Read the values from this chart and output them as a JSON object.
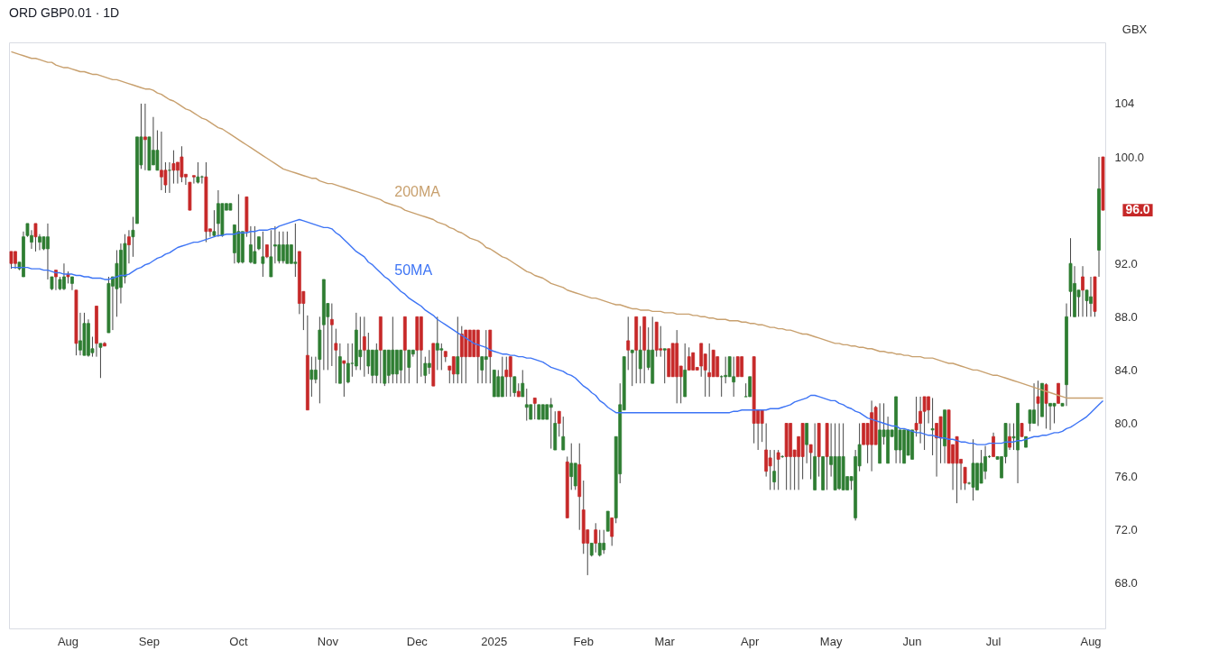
{
  "chart_data": {
    "type": "candlestick",
    "title": "ORD GBP0.01 · 1D",
    "ylabel": "GBX",
    "ylim": [
      64.6,
      108.6
    ],
    "yticks": [
      {
        "value": 68,
        "label": "68.0"
      },
      {
        "value": 72,
        "label": "72.0"
      },
      {
        "value": 76,
        "label": "76.0"
      },
      {
        "value": 80,
        "label": "80.0"
      },
      {
        "value": 84,
        "label": "84.0"
      },
      {
        "value": 88,
        "label": "88.0"
      },
      {
        "value": 92,
        "label": "92.0"
      },
      {
        "value": 100,
        "label": "100.0"
      },
      104
    ],
    "categories": [
      null,
      null,
      null,
      null,
      null,
      null,
      null,
      null,
      null,
      null,
      null,
      null,
      null,
      null,
      "Aug",
      null,
      null,
      null,
      null,
      null,
      null,
      null,
      null,
      null,
      null,
      null,
      null,
      null,
      null,
      null,
      null,
      null,
      null,
      null,
      "Sep",
      null,
      null,
      null,
      null,
      null,
      null,
      null,
      null,
      null,
      null,
      null,
      null,
      null,
      null,
      null,
      null,
      null,
      null,
      null,
      null,
      null,
      "Oct",
      null,
      null,
      null,
      null,
      null,
      null,
      null,
      null,
      null,
      null,
      null,
      null,
      null,
      null,
      null,
      null,
      null,
      null,
      null,
      null,
      null,
      "Nov",
      null,
      null,
      null,
      null,
      null,
      null,
      null,
      null,
      null,
      null,
      null,
      null,
      null,
      null,
      null,
      null,
      null,
      null,
      null,
      null,
      null,
      "Dec",
      null,
      null,
      null,
      null,
      null,
      null,
      null,
      null,
      null,
      null,
      null,
      null,
      null,
      null,
      null,
      null,
      null,
      null,
      "2025",
      null,
      null,
      null,
      null,
      null,
      null,
      null,
      null,
      null,
      null,
      null,
      null,
      null,
      null,
      null,
      null,
      null,
      null,
      null,
      null,
      null,
      "Feb",
      null,
      null,
      null,
      null,
      null,
      null,
      null,
      null,
      null,
      null,
      null,
      null,
      null,
      null,
      null,
      null,
      null,
      null,
      null,
      "Mar",
      null,
      null,
      null,
      null,
      null,
      null,
      null,
      null,
      null,
      null,
      null,
      null,
      null,
      null,
      null,
      null,
      null,
      null,
      null,
      null,
      "Apr",
      null,
      null,
      null,
      null,
      null,
      null,
      null,
      null,
      null,
      null,
      null,
      null,
      null,
      null,
      null,
      null,
      null,
      null,
      null,
      "May",
      null,
      null,
      null,
      null,
      null,
      null,
      null,
      null,
      null,
      null,
      null,
      null,
      null,
      null,
      null,
      null,
      null,
      null,
      null,
      "Jun",
      null,
      null,
      null,
      null,
      null,
      null,
      null,
      null,
      null,
      null,
      null,
      null,
      null,
      null,
      null,
      null,
      null,
      null,
      null,
      "Jul",
      null,
      null,
      null,
      null,
      null,
      null,
      null,
      null,
      null,
      null,
      null,
      null,
      null,
      null,
      null,
      null,
      null,
      null,
      null,
      null,
      null,
      null,
      null,
      "Aug",
      null,
      null,
      null
    ],
    "ohlc": [
      [
        92.9,
        92.9,
        91.6,
        92.0
      ],
      [
        92.9,
        92.9,
        91.6,
        92.0
      ],
      [
        91.6,
        92.1,
        91.5,
        92.1
      ],
      [
        91.0,
        94.4,
        91.0,
        94.0
      ],
      [
        94.1,
        95.0,
        94.0,
        95.0
      ],
      [
        93.6,
        94.5,
        93.1,
        94.1
      ],
      [
        95.0,
        95.0,
        92.9,
        94.0
      ],
      [
        93.6,
        94.2,
        93.0,
        94.0
      ],
      [
        93.1,
        94.0,
        93.0,
        94.0
      ],
      [
        93.1,
        95.0,
        90.8,
        94.0
      ],
      [
        90.1,
        91.0,
        90.0,
        91.0
      ],
      [
        91.5,
        91.5,
        90.0,
        91.0
      ],
      [
        90.1,
        91.0,
        90.0,
        90.8
      ],
      [
        90.1,
        92.0,
        90.0,
        91.0
      ],
      [
        91.2,
        91.4,
        90.5,
        91.0
      ],
      [
        90.5,
        91.0,
        90.0,
        91.0
      ],
      [
        90.0,
        90.0,
        85.1,
        86.0
      ],
      [
        85.5,
        88.3,
        85.1,
        86.2
      ],
      [
        85.1,
        88.3,
        85.1,
        87.5
      ],
      [
        85.1,
        87.8,
        85.0,
        87.5
      ],
      [
        85.3,
        86.5,
        85.0,
        85.6
      ],
      [
        88.8,
        88.8,
        85.0,
        86.0
      ],
      [
        85.7,
        86.0,
        83.4,
        86.0
      ],
      [
        86.0,
        86.1,
        85.8,
        85.8
      ],
      [
        86.8,
        91.0,
        86.8,
        90.5
      ],
      [
        90.3,
        91.0,
        87.0,
        91.0
      ],
      [
        90.1,
        93.0,
        88.0,
        92.0
      ],
      [
        90.2,
        93.5,
        89.0,
        93.0
      ],
      [
        91.0,
        94.2,
        90.5,
        93.5
      ],
      [
        94.0,
        94.5,
        92.0,
        93.4
      ],
      [
        94.0,
        95.5,
        92.5,
        94.5
      ],
      [
        95.0,
        101.5,
        95.0,
        101.5
      ],
      [
        99.4,
        104.0,
        99.1,
        101.5
      ],
      [
        101.5,
        104.0,
        99.0,
        101.3
      ],
      [
        99.0,
        101.5,
        99.0,
        101.5
      ],
      [
        99.4,
        103.0,
        99.4,
        100.5
      ],
      [
        99.0,
        102.0,
        99.0,
        100.5
      ],
      [
        99.0,
        101.9,
        97.5,
        98.5
      ],
      [
        99.0,
        99.6,
        97.3,
        97.9
      ],
      [
        99.0,
        99.6,
        97.3,
        99.0
      ],
      [
        99.5,
        100.5,
        98.0,
        99.0
      ],
      [
        99.6,
        99.6,
        98.0,
        99.0
      ],
      [
        100.0,
        100.8,
        98.1,
        98.5
      ],
      [
        98.7,
        98.7,
        97.9,
        98.5
      ],
      [
        98.1,
        98.1,
        96.0,
        96.0
      ],
      [
        98.6,
        98.6,
        98.0,
        98.5
      ],
      [
        98.1,
        99.6,
        98.0,
        98.5
      ],
      [
        98.5,
        98.6,
        98.0,
        98.5
      ],
      [
        98.5,
        99.6,
        93.6,
        94.4
      ],
      [
        94.6,
        94.6,
        94.0,
        94.4
      ],
      [
        94.1,
        96.0,
        94.0,
        94.4
      ],
      [
        95.0,
        97.5,
        94.0,
        96.5
      ],
      [
        94.1,
        96.5,
        94.0,
        96.5
      ],
      [
        96.0,
        96.5,
        96.0,
        96.5
      ],
      [
        96.0,
        96.5,
        96.0,
        96.5
      ],
      [
        92.8,
        94.9,
        92.0,
        94.9
      ],
      [
        92.1,
        97.2,
        92.0,
        94.4
      ],
      [
        92.1,
        94.4,
        92.0,
        94.4
      ],
      [
        97.0,
        97.0,
        94.0,
        94.4
      ],
      [
        92.1,
        94.8,
        92.0,
        93.4
      ],
      [
        92.0,
        94.8,
        92.0,
        92.9
      ],
      [
        93.1,
        94.0,
        93.0,
        94.0
      ],
      [
        92.0,
        94.4,
        91.0,
        92.5
      ],
      [
        93.4,
        93.4,
        92.4,
        92.5
      ],
      [
        91.0,
        94.5,
        91.0,
        92.5
      ],
      [
        93.3,
        94.8,
        92.0,
        93.4
      ],
      [
        92.2,
        94.4,
        92.0,
        93.4
      ],
      [
        92.2,
        94.4,
        92.0,
        93.4
      ],
      [
        92.0,
        94.4,
        92.0,
        93.4
      ],
      [
        92.0,
        93.4,
        92.0,
        93.4
      ],
      [
        92.0,
        95.0,
        91.0,
        92.1
      ],
      [
        92.9,
        92.9,
        88.2,
        89.0
      ],
      [
        89.9,
        89.9,
        87.0,
        89.0
      ],
      [
        85.1,
        88.1,
        81.0,
        81.0
      ],
      [
        83.3,
        85.0,
        82.0,
        84.0
      ],
      [
        83.3,
        85.0,
        83.0,
        84.0
      ],
      [
        84.8,
        88.0,
        81.5,
        87.0
      ],
      [
        87.4,
        90.8,
        84.0,
        90.8
      ],
      [
        88.0,
        89.0,
        84.0,
        89.0
      ],
      [
        87.8,
        89.0,
        84.3,
        87.4
      ],
      [
        86.0,
        87.1,
        83.0,
        85.5
      ],
      [
        83.0,
        86.0,
        83.0,
        85.0
      ],
      [
        84.7,
        84.7,
        82.0,
        84.5
      ],
      [
        83.1,
        86.0,
        83.0,
        84.5
      ],
      [
        84.5,
        86.0,
        83.5,
        84.5
      ],
      [
        84.3,
        88.3,
        84.0,
        87.0
      ],
      [
        85.0,
        88.0,
        84.0,
        85.5
      ],
      [
        86.5,
        88.0,
        83.5,
        85.5
      ],
      [
        84.3,
        86.8,
        83.7,
        85.5
      ],
      [
        83.6,
        85.5,
        83.0,
        85.5
      ],
      [
        83.6,
        86.0,
        83.0,
        85.5
      ],
      [
        88.0,
        88.0,
        83.0,
        85.5
      ],
      [
        83.0,
        85.5,
        82.8,
        85.5
      ],
      [
        83.6,
        85.5,
        83.0,
        85.5
      ],
      [
        83.7,
        88.0,
        83.0,
        85.5
      ],
      [
        83.7,
        85.5,
        83.0,
        85.5
      ],
      [
        84.0,
        85.5,
        83.0,
        85.5
      ],
      [
        88.0,
        88.0,
        83.0,
        85.5
      ],
      [
        84.2,
        85.5,
        83.0,
        85.5
      ],
      [
        85.2,
        85.5,
        85.0,
        85.5
      ],
      [
        88.0,
        88.0,
        83.0,
        85.5
      ],
      [
        88.0,
        88.0,
        83.5,
        85.5
      ],
      [
        83.6,
        85.0,
        83.0,
        84.5
      ],
      [
        84.2,
        85.5,
        83.7,
        84.5
      ],
      [
        86.0,
        86.0,
        82.8,
        82.8
      ],
      [
        85.5,
        88.0,
        84.0,
        86.0
      ],
      [
        85.5,
        86.0,
        84.0,
        85.6
      ],
      [
        85.4,
        85.4,
        84.6,
        85.0
      ],
      [
        84.3,
        84.3,
        83.0,
        84.0
      ],
      [
        85.0,
        85.0,
        83.0,
        83.7
      ],
      [
        83.7,
        88.0,
        83.0,
        85.0
      ],
      [
        86.7,
        87.3,
        83.0,
        85.0
      ],
      [
        87.0,
        87.0,
        83.0,
        85.0
      ],
      [
        87.0,
        87.0,
        85.0,
        85.0
      ],
      [
        87.0,
        87.0,
        85.0,
        85.0
      ],
      [
        87.0,
        87.0,
        83.0,
        85.0
      ],
      [
        84.0,
        85.0,
        83.0,
        85.0
      ],
      [
        84.8,
        87.0,
        83.0,
        85.0
      ],
      [
        87.0,
        87.0,
        83.0,
        85.0
      ],
      [
        82.0,
        84.0,
        82.0,
        84.0
      ],
      [
        82.0,
        84.0,
        82.0,
        83.5
      ],
      [
        82.0,
        85.0,
        82.0,
        83.5
      ],
      [
        84.0,
        85.0,
        82.0,
        83.5
      ],
      [
        85.0,
        85.0,
        82.0,
        83.5
      ],
      [
        82.3,
        83.5,
        82.0,
        83.5
      ],
      [
        82.4,
        83.0,
        82.0,
        82.0
      ],
      [
        82.0,
        84.0,
        82.0,
        83.0
      ],
      [
        81.2,
        82.6,
        80.2,
        81.4
      ],
      [
        80.3,
        81.4,
        80.3,
        81.4
      ],
      [
        81.9,
        81.9,
        80.3,
        81.5
      ],
      [
        80.3,
        81.4,
        80.3,
        81.4
      ],
      [
        80.3,
        81.4,
        80.3,
        81.4
      ],
      [
        80.3,
        81.4,
        80.3,
        81.4
      ],
      [
        81.2,
        81.9,
        78.1,
        81.4
      ],
      [
        78.0,
        80.9,
        78.0,
        80.0
      ],
      [
        80.9,
        80.9,
        79.0,
        80.0
      ],
      [
        78.0,
        80.5,
        78.0,
        79.0
      ],
      [
        77.1,
        77.5,
        72.9,
        72.9
      ],
      [
        76.0,
        78.5,
        75.0,
        77.0
      ],
      [
        75.3,
        77.0,
        75.0,
        77.0
      ],
      [
        76.9,
        78.5,
        72.0,
        74.5
      ],
      [
        73.5,
        75.7,
        70.2,
        71.0
      ],
      [
        72.0,
        72.0,
        68.6,
        71.0
      ],
      [
        70.1,
        71.0,
        70.0,
        71.0
      ],
      [
        72.0,
        72.5,
        70.3,
        71.0
      ],
      [
        70.1,
        72.0,
        70.0,
        71.0
      ],
      [
        70.5,
        72.0,
        70.2,
        71.0
      ],
      [
        71.9,
        73.4,
        71.9,
        73.4
      ],
      [
        72.9,
        72.9,
        70.8,
        71.5
      ],
      [
        72.9,
        79.0,
        72.5,
        79.0
      ],
      [
        76.2,
        83.0,
        75.5,
        81.4
      ],
      [
        81.0,
        85.0,
        81.0,
        85.0
      ],
      [
        86.2,
        88.0,
        84.0,
        85.5
      ],
      [
        85.3,
        85.5,
        82.8,
        85.5
      ],
      [
        88.0,
        88.0,
        83.0,
        85.5
      ],
      [
        84.1,
        87.3,
        83.0,
        85.5
      ],
      [
        88.0,
        88.0,
        83.0,
        85.5
      ],
      [
        84.2,
        87.2,
        84.0,
        85.5
      ],
      [
        83.0,
        88.0,
        83.0,
        85.5
      ],
      [
        87.6,
        87.6,
        85.0,
        85.5
      ],
      [
        85.6,
        87.3,
        85.0,
        85.5
      ],
      [
        85.5,
        85.6,
        83.0,
        85.6
      ],
      [
        85.6,
        85.6,
        83.5,
        83.5
      ],
      [
        86.0,
        86.0,
        83.5,
        83.5
      ],
      [
        86.0,
        87.0,
        81.5,
        83.5
      ],
      [
        84.3,
        84.3,
        81.5,
        83.5
      ],
      [
        82.0,
        86.0,
        82.0,
        84.0
      ],
      [
        85.0,
        85.7,
        84.0,
        84.0
      ],
      [
        85.3,
        85.3,
        84.0,
        84.0
      ],
      [
        84.2,
        84.2,
        84.0,
        84.0
      ],
      [
        86.0,
        86.0,
        83.5,
        84.3
      ],
      [
        85.2,
        85.2,
        82.0,
        84.0
      ],
      [
        83.8,
        86.0,
        82.0,
        83.5
      ],
      [
        85.5,
        85.5,
        83.5,
        83.5
      ],
      [
        85.0,
        85.0,
        83.5,
        83.5
      ],
      [
        83.5,
        83.6,
        82.0,
        83.5
      ],
      [
        83.5,
        85.0,
        83.0,
        83.6
      ],
      [
        83.5,
        85.0,
        83.5,
        85.0
      ],
      [
        83.1,
        85.0,
        82.0,
        83.5
      ],
      [
        85.0,
        85.0,
        83.5,
        83.5
      ],
      [
        85.0,
        85.0,
        83.5,
        83.5
      ],
      [
        82.0,
        83.0,
        82.0,
        82.0
      ],
      [
        82.0,
        83.5,
        82.0,
        83.5
      ],
      [
        85.0,
        85.0,
        78.5,
        80.0
      ],
      [
        81.0,
        81.0,
        78.0,
        80.0
      ],
      [
        81.0,
        81.0,
        78.6,
        80.0
      ],
      [
        78.0,
        80.0,
        76.0,
        76.4
      ],
      [
        77.4,
        78.0,
        75.0,
        76.8
      ],
      [
        75.6,
        78.0,
        75.0,
        76.4
      ],
      [
        77.8,
        78.0,
        75.0,
        77.3
      ],
      [
        77.5,
        77.6,
        77.4,
        77.5
      ],
      [
        80.0,
        80.0,
        75.0,
        77.5
      ],
      [
        80.0,
        80.0,
        75.0,
        77.5
      ],
      [
        78.0,
        78.0,
        75.0,
        77.5
      ],
      [
        79.0,
        79.0,
        75.0,
        77.5
      ],
      [
        80.0,
        80.0,
        75.8,
        77.5
      ],
      [
        78.4,
        80.0,
        77.0,
        80.0
      ],
      [
        78.4,
        78.4,
        75.8,
        77.8
      ],
      [
        75.0,
        80.0,
        75.0,
        77.5
      ],
      [
        80.0,
        80.0,
        76.0,
        77.5
      ],
      [
        75.0,
        77.5,
        75.0,
        77.5
      ],
      [
        80.0,
        80.0,
        75.0,
        77.5
      ],
      [
        76.9,
        80.0,
        76.0,
        77.5
      ],
      [
        75.0,
        80.0,
        75.0,
        77.5
      ],
      [
        75.1,
        80.0,
        75.0,
        77.5
      ],
      [
        75.0,
        80.0,
        75.0,
        77.5
      ],
      [
        75.0,
        76.0,
        75.0,
        76.0
      ],
      [
        75.7,
        76.0,
        75.0,
        76.0
      ],
      [
        72.9,
        78.0,
        72.7,
        77.5
      ],
      [
        76.8,
        80.0,
        76.4,
        78.4
      ],
      [
        80.0,
        80.0,
        78.4,
        78.4
      ],
      [
        80.0,
        80.0,
        77.0,
        78.4
      ],
      [
        80.8,
        81.7,
        76.4,
        78.4
      ],
      [
        81.2,
        81.3,
        78.4,
        78.4
      ],
      [
        77.0,
        81.5,
        77.0,
        79.5
      ],
      [
        79.0,
        81.5,
        78.4,
        79.5
      ],
      [
        77.0,
        80.5,
        77.0,
        79.5
      ],
      [
        79.0,
        79.5,
        79.0,
        79.5
      ],
      [
        78.0,
        82.0,
        77.0,
        82.0
      ],
      [
        78.0,
        79.5,
        77.0,
        79.5
      ],
      [
        77.0,
        79.5,
        77.0,
        79.5
      ],
      [
        77.6,
        79.5,
        77.6,
        79.5
      ],
      [
        77.3,
        79.5,
        77.3,
        79.5
      ],
      [
        80.0,
        82.0,
        79.0,
        79.5
      ],
      [
        80.9,
        82.0,
        78.5,
        80.0
      ],
      [
        82.0,
        82.0,
        78.0,
        80.9
      ],
      [
        82.0,
        82.0,
        80.0,
        81.0
      ],
      [
        79.5,
        81.9,
        77.6,
        79.6
      ],
      [
        80.0,
        80.0,
        76.0,
        78.9
      ],
      [
        80.5,
        80.5,
        77.0,
        78.9
      ],
      [
        78.3,
        81.0,
        77.0,
        81.0
      ],
      [
        81.0,
        81.0,
        77.0,
        77.0
      ],
      [
        78.4,
        78.4,
        75.0,
        77.0
      ],
      [
        79.0,
        79.0,
        74.0,
        77.0
      ],
      [
        77.3,
        77.3,
        75.0,
        77.0
      ],
      [
        76.7,
        76.7,
        75.0,
        75.5
      ],
      [
        75.5,
        75.6,
        75.4,
        75.5
      ],
      [
        75.2,
        78.8,
        74.2,
        77.0
      ],
      [
        75.0,
        77.0,
        75.0,
        77.0
      ],
      [
        75.5,
        78.0,
        75.5,
        77.0
      ],
      [
        76.4,
        78.3,
        75.8,
        77.5
      ],
      [
        77.5,
        77.6,
        77.4,
        77.5
      ],
      [
        79.0,
        79.3,
        77.5,
        77.5
      ],
      [
        77.3,
        77.5,
        77.3,
        77.5
      ],
      [
        75.9,
        77.5,
        75.9,
        77.5
      ],
      [
        77.5,
        80.0,
        77.0,
        80.0
      ],
      [
        79.0,
        80.0,
        78.0,
        78.2
      ],
      [
        78.9,
        80.0,
        78.0,
        79.0
      ],
      [
        78.0,
        81.5,
        75.5,
        81.5
      ],
      [
        80.0,
        80.0,
        79.0,
        79.0
      ],
      [
        78.2,
        79.0,
        78.2,
        79.0
      ],
      [
        80.0,
        81.0,
        79.4,
        81.0
      ],
      [
        80.0,
        83.0,
        80.0,
        81.0
      ],
      [
        82.0,
        83.2,
        79.8,
        81.5
      ],
      [
        80.5,
        83.0,
        80.5,
        83.0
      ],
      [
        82.9,
        83.0,
        79.6,
        81.5
      ],
      [
        81.3,
        81.5,
        79.5,
        81.5
      ],
      [
        81.3,
        81.5,
        80.0,
        81.5
      ],
      [
        83.0,
        83.0,
        81.5,
        81.5
      ],
      [
        81.3,
        81.5,
        81.3,
        81.5
      ],
      [
        82.9,
        89.0,
        81.3,
        88.0
      ],
      [
        89.9,
        93.9,
        88.0,
        92.0
      ],
      [
        88.0,
        91.8,
        88.0,
        90.5
      ],
      [
        89.5,
        90.0,
        88.0,
        90.0
      ],
      [
        91.0,
        91.8,
        88.0,
        90.0
      ],
      [
        89.2,
        90.0,
        88.0,
        90.0
      ],
      [
        89.0,
        91.0,
        88.0,
        89.5
      ],
      [
        91.0,
        91.0,
        88.0,
        88.4
      ],
      [
        93.0,
        100.0,
        91.0,
        97.6
      ],
      [
        100.0,
        100.0,
        96.0,
        96.0
      ]
    ],
    "colors": [
      "#c62828",
      "#c62828",
      "#2e7d32",
      "#2e7d32",
      "#2e7d32",
      "#2e7d32",
      "#c62828",
      "#2e7d32",
      "#2e7d32",
      "#2e7d32",
      "#2e7d32",
      "#c62828",
      "#2e7d32",
      "#2e7d32",
      "#c62828",
      "#2e7d32",
      "#c62828",
      "#2e7d32",
      "#2e7d32",
      "#2e7d32",
      "#2e7d32",
      "#c62828",
      "#2e7d32",
      "#c62828",
      "#2e7d32",
      "#2e7d32",
      "#2e7d32",
      "#2e7d32",
      "#2e7d32",
      "#c62828",
      "#2e7d32",
      "#2e7d32",
      "#2e7d32",
      "#c62828",
      "#2e7d32",
      "#2e7d32",
      "#2e7d32",
      "#c62828",
      "#c62828",
      "#2e7d32",
      "#c62828",
      "#c62828",
      "#c62828",
      "#c62828",
      "#c62828",
      "#c62828",
      "#2e7d32",
      "#2e7d32",
      "#c62828",
      "#c62828",
      "#2e7d32",
      "#2e7d32",
      "#2e7d32",
      "#2e7d32",
      "#2e7d32",
      "#2e7d32",
      "#2e7d32",
      "#2e7d32",
      "#c62828",
      "#2e7d32",
      "#2e7d32",
      "#2e7d32",
      "#2e7d32",
      "#c62828",
      "#2e7d32",
      "#2e7d32",
      "#2e7d32",
      "#2e7d32",
      "#2e7d32",
      "#2e7d32",
      "#2e7d32",
      "#c62828",
      "#c62828",
      "#c62828",
      "#2e7d32",
      "#2e7d32",
      "#2e7d32",
      "#2e7d32",
      "#2e7d32",
      "#c62828",
      "#c62828",
      "#2e7d32",
      "#c62828",
      "#2e7d32",
      "#2e7d32",
      "#2e7d32",
      "#2e7d32",
      "#c62828",
      "#2e7d32",
      "#2e7d32",
      "#2e7d32",
      "#c62828",
      "#2e7d32",
      "#2e7d32",
      "#2e7d32",
      "#2e7d32",
      "#2e7d32",
      "#c62828",
      "#2e7d32",
      "#2e7d32",
      "#c62828",
      "#c62828",
      "#2e7d32",
      "#2e7d32",
      "#c62828",
      "#2e7d32",
      "#2e7d32",
      "#c62828",
      "#c62828",
      "#c62828",
      "#2e7d32",
      "#c62828",
      "#c62828",
      "#c62828",
      "#c62828",
      "#c62828",
      "#2e7d32",
      "#2e7d32",
      "#c62828",
      "#2e7d32",
      "#2e7d32",
      "#2e7d32",
      "#c62828",
      "#c62828",
      "#2e7d32",
      "#c62828",
      "#2e7d32",
      "#2e7d32",
      "#2e7d32",
      "#c62828",
      "#2e7d32",
      "#2e7d32",
      "#2e7d32",
      "#2e7d32",
      "#2e7d32",
      "#c62828",
      "#2e7d32",
      "#c62828",
      "#2e7d32",
      "#2e7d32",
      "#c62828",
      "#c62828",
      "#c62828",
      "#2e7d32",
      "#c62828",
      "#2e7d32",
      "#2e7d32",
      "#2e7d32",
      "#c62828",
      "#2e7d32",
      "#2e7d32",
      "#2e7d32",
      "#c62828",
      "#2e7d32",
      "#c62828",
      "#2e7d32",
      "#c62828",
      "#2e7d32",
      "#2e7d32",
      "#c62828",
      "#c62828",
      "#2e7d32",
      "#c62828",
      "#c62828",
      "#c62828",
      "#c62828",
      "#2e7d32",
      "#c62828",
      "#c62828",
      "#c62828",
      "#c62828",
      "#c62828",
      "#c62828",
      "#c62828",
      "#c62828",
      "#2e7d32",
      "#2e7d32",
      "#2e7d32",
      "#2e7d32",
      "#c62828",
      "#c62828",
      "#2e7d32",
      "#2e7d32",
      "#c62828",
      "#c62828",
      "#c62828",
      "#c62828",
      "#c62828",
      "#2e7d32",
      "#c62828",
      "#2e7d32",
      "#c62828",
      "#c62828",
      "#c62828",
      "#c62828",
      "#c62828",
      "#2e7d32",
      "#c62828",
      "#2e7d32",
      "#c62828",
      "#2e7d32",
      "#c62828",
      "#2e7d32",
      "#2e7d32",
      "#2e7d32",
      "#2e7d32",
      "#2e7d32",
      "#2e7d32",
      "#2e7d32",
      "#2e7d32",
      "#c62828",
      "#c62828",
      "#c62828",
      "#c62828",
      "#2e7d32",
      "#2e7d32",
      "#2e7d32",
      "#2e7d32",
      "#2e7d32",
      "#2e7d32",
      "#2e7d32",
      "#2e7d32",
      "#2e7d32",
      "#c62828",
      "#c62828",
      "#c62828",
      "#c62828",
      "#2e7d32",
      "#c62828",
      "#c62828",
      "#2e7d32",
      "#c62828",
      "#c62828",
      "#c62828",
      "#c62828",
      "#c62828",
      "#2e7d32",
      "#2e7d32",
      "#2e7d32",
      "#2e7d32",
      "#2e7d32",
      "#2e7d32",
      "#c62828",
      "#2e7d32",
      "#2e7d32",
      "#2e7d32",
      "#c62828",
      "#2e7d32",
      "#2e7d32",
      "#c62828",
      "#2e7d32",
      "#2e7d32",
      "#2e7d32",
      "#c62828",
      "#2e7d32",
      "#c62828",
      "#2e7d32",
      "#2e7d32",
      "#c62828",
      "#2e7d32",
      "#2e7d32",
      "#2e7d32",
      "#2e7d32",
      "#2e7d32",
      "#c62828",
      "#2e7d32",
      "#2e7d32",
      "#c62828",
      "#2e7d32",
      "#c62828"
    ],
    "series": [
      {
        "name": "200MA",
        "type": "line",
        "color": "#c8a06e",
        "values": [
          107.9,
          107.8,
          107.7,
          107.6,
          107.5,
          107.4,
          107.4,
          107.3,
          107.2,
          107.1,
          107.1,
          106.9,
          106.8,
          106.7,
          106.7,
          106.6,
          106.5,
          106.4,
          106.4,
          106.3,
          106.2,
          106.2,
          106.1,
          106.0,
          105.9,
          105.8,
          105.8,
          105.7,
          105.6,
          105.5,
          105.4,
          105.3,
          105.2,
          105.1,
          105.1,
          105.0,
          104.8,
          104.7,
          104.5,
          104.3,
          104.2,
          104.0,
          103.8,
          103.6,
          103.5,
          103.3,
          103.1,
          102.9,
          102.8,
          102.6,
          102.4,
          102.2,
          102.1,
          101.9,
          101.7,
          101.5,
          101.3,
          101.1,
          100.9,
          100.7,
          100.5,
          100.3,
          100.1,
          99.9,
          99.7,
          99.5,
          99.3,
          99.1,
          99.0,
          98.9,
          98.8,
          98.7,
          98.6,
          98.5,
          98.4,
          98.4,
          98.2,
          98.1,
          98.0,
          98.0,
          97.9,
          97.8,
          97.7,
          97.6,
          97.5,
          97.4,
          97.3,
          97.2,
          97.1,
          97.0,
          96.9,
          96.8,
          96.6,
          96.5,
          96.4,
          96.3,
          96.2,
          96.0,
          95.9,
          95.8,
          95.7,
          95.6,
          95.5,
          95.4,
          95.3,
          95.1,
          95.0,
          94.9,
          94.7,
          94.6,
          94.4,
          94.3,
          94.1,
          93.9,
          93.8,
          93.7,
          93.5,
          93.2,
          93.1,
          92.9,
          92.7,
          92.5,
          92.4,
          92.2,
          92.0,
          91.8,
          91.6,
          91.4,
          91.3,
          91.1,
          91.0,
          90.9,
          90.7,
          90.5,
          90.4,
          90.3,
          90.2,
          90.0,
          89.9,
          89.8,
          89.7,
          89.6,
          89.5,
          89.4,
          89.4,
          89.3,
          89.2,
          89.1,
          89.0,
          88.9,
          88.9,
          88.8,
          88.7,
          88.6,
          88.6,
          88.5,
          88.5,
          88.5,
          88.4,
          88.4,
          88.4,
          88.3,
          88.3,
          88.3,
          88.2,
          88.2,
          88.2,
          88.2,
          88.1,
          88.1,
          88.0,
          88.0,
          87.9,
          87.9,
          87.8,
          87.8,
          87.8,
          87.7,
          87.7,
          87.7,
          87.6,
          87.6,
          87.5,
          87.5,
          87.4,
          87.4,
          87.3,
          87.2,
          87.2,
          87.1,
          87.1,
          87.0,
          87.0,
          86.9,
          86.8,
          86.7,
          86.7,
          86.6,
          86.5,
          86.4,
          86.3,
          86.2,
          86.1,
          86.0,
          86.0,
          85.9,
          85.9,
          85.8,
          85.8,
          85.7,
          85.7,
          85.6,
          85.6,
          85.5,
          85.4,
          85.4,
          85.3,
          85.3,
          85.2,
          85.2,
          85.1,
          85.1,
          85.0,
          85.0,
          85.0,
          84.9,
          84.9,
          84.9,
          84.8,
          84.7,
          84.6,
          84.5,
          84.5,
          84.4,
          84.3,
          84.2,
          84.1,
          84.0,
          84.0,
          83.9,
          83.8,
          83.7,
          83.6,
          83.6,
          83.5,
          83.4,
          83.3,
          83.2,
          83.1,
          83.0,
          82.9,
          82.8,
          82.7,
          82.6,
          82.5,
          82.4,
          82.3,
          82.2,
          82.1,
          82.0,
          81.9,
          81.9,
          81.9,
          81.9,
          81.9,
          81.9,
          81.9,
          81.9,
          81.9,
          81.9
        ]
      },
      {
        "name": "50MA",
        "type": "line",
        "color": "#3d74f5",
        "values": [
          91.7,
          91.7,
          91.7,
          91.7,
          91.7,
          91.6,
          91.6,
          91.6,
          91.5,
          91.5,
          91.4,
          91.3,
          91.3,
          91.2,
          91.2,
          91.2,
          91.1,
          91.1,
          91.0,
          91.0,
          90.9,
          90.9,
          90.9,
          90.8,
          90.8,
          90.9,
          91.0,
          91.1,
          91.1,
          91.2,
          91.4,
          91.6,
          91.7,
          91.9,
          92.0,
          92.2,
          92.4,
          92.5,
          92.7,
          92.8,
          93.0,
          93.2,
          93.3,
          93.4,
          93.5,
          93.6,
          93.6,
          93.7,
          93.8,
          93.9,
          94.0,
          94.1,
          94.1,
          94.2,
          94.2,
          94.2,
          94.3,
          94.3,
          94.3,
          94.4,
          94.4,
          94.5,
          94.5,
          94.5,
          94.6,
          94.6,
          94.8,
          94.9,
          95.0,
          95.1,
          95.2,
          95.3,
          95.2,
          95.1,
          95.0,
          94.9,
          94.8,
          94.7,
          94.7,
          94.6,
          94.3,
          94.1,
          93.8,
          93.5,
          93.2,
          92.9,
          92.7,
          92.5,
          92.1,
          91.9,
          91.6,
          91.3,
          91.0,
          90.8,
          90.5,
          90.2,
          89.9,
          89.7,
          89.4,
          89.2,
          89.0,
          88.8,
          88.5,
          88.3,
          88.1,
          87.8,
          87.6,
          87.4,
          87.2,
          87.0,
          86.8,
          86.6,
          86.4,
          86.2,
          86.0,
          85.9,
          85.8,
          85.7,
          85.5,
          85.4,
          85.3,
          85.2,
          85.2,
          85.1,
          85.1,
          85.0,
          85.0,
          84.9,
          84.9,
          84.8,
          84.7,
          84.6,
          84.4,
          84.2,
          84.1,
          84.0,
          83.9,
          83.7,
          83.6,
          83.4,
          83.1,
          82.8,
          82.6,
          82.3,
          82.1,
          81.7,
          81.5,
          81.2,
          81.0,
          80.8,
          80.8,
          80.8,
          80.8,
          80.8,
          80.8,
          80.8,
          80.8,
          80.8,
          80.8,
          80.8,
          80.8,
          80.8,
          80.8,
          80.8,
          80.8,
          80.8,
          80.8,
          80.8,
          80.8,
          80.8,
          80.8,
          80.8,
          80.8,
          80.8,
          80.8,
          80.8,
          80.8,
          80.8,
          80.9,
          80.9,
          81.0,
          81.0,
          81.0,
          81.0,
          81.0,
          81.0,
          81.0,
          81.1,
          81.1,
          81.1,
          81.2,
          81.3,
          81.4,
          81.6,
          81.7,
          81.8,
          81.9,
          82.1,
          82.1,
          82.0,
          81.9,
          81.8,
          81.7,
          81.7,
          81.5,
          81.4,
          81.2,
          81.1,
          80.9,
          80.8,
          80.6,
          80.4,
          80.3,
          80.2,
          80.1,
          80.0,
          79.9,
          79.8,
          79.8,
          79.6,
          79.6,
          79.5,
          79.4,
          79.3,
          79.3,
          79.2,
          79.1,
          79.1,
          79.0,
          78.9,
          78.9,
          78.8,
          78.8,
          78.7,
          78.6,
          78.6,
          78.5,
          78.5,
          78.4,
          78.4,
          78.4,
          78.5,
          78.5,
          78.5,
          78.5,
          78.6,
          78.6,
          78.6,
          78.7,
          78.7,
          78.8,
          78.9,
          79.0,
          79.0,
          79.1,
          79.1,
          79.2,
          79.3,
          79.3,
          79.4,
          79.6,
          79.7,
          79.9,
          80.1,
          80.3,
          80.5,
          80.8,
          81.1,
          81.4,
          81.7
        ]
      }
    ],
    "annotations": [
      "96.0"
    ]
  }
}
